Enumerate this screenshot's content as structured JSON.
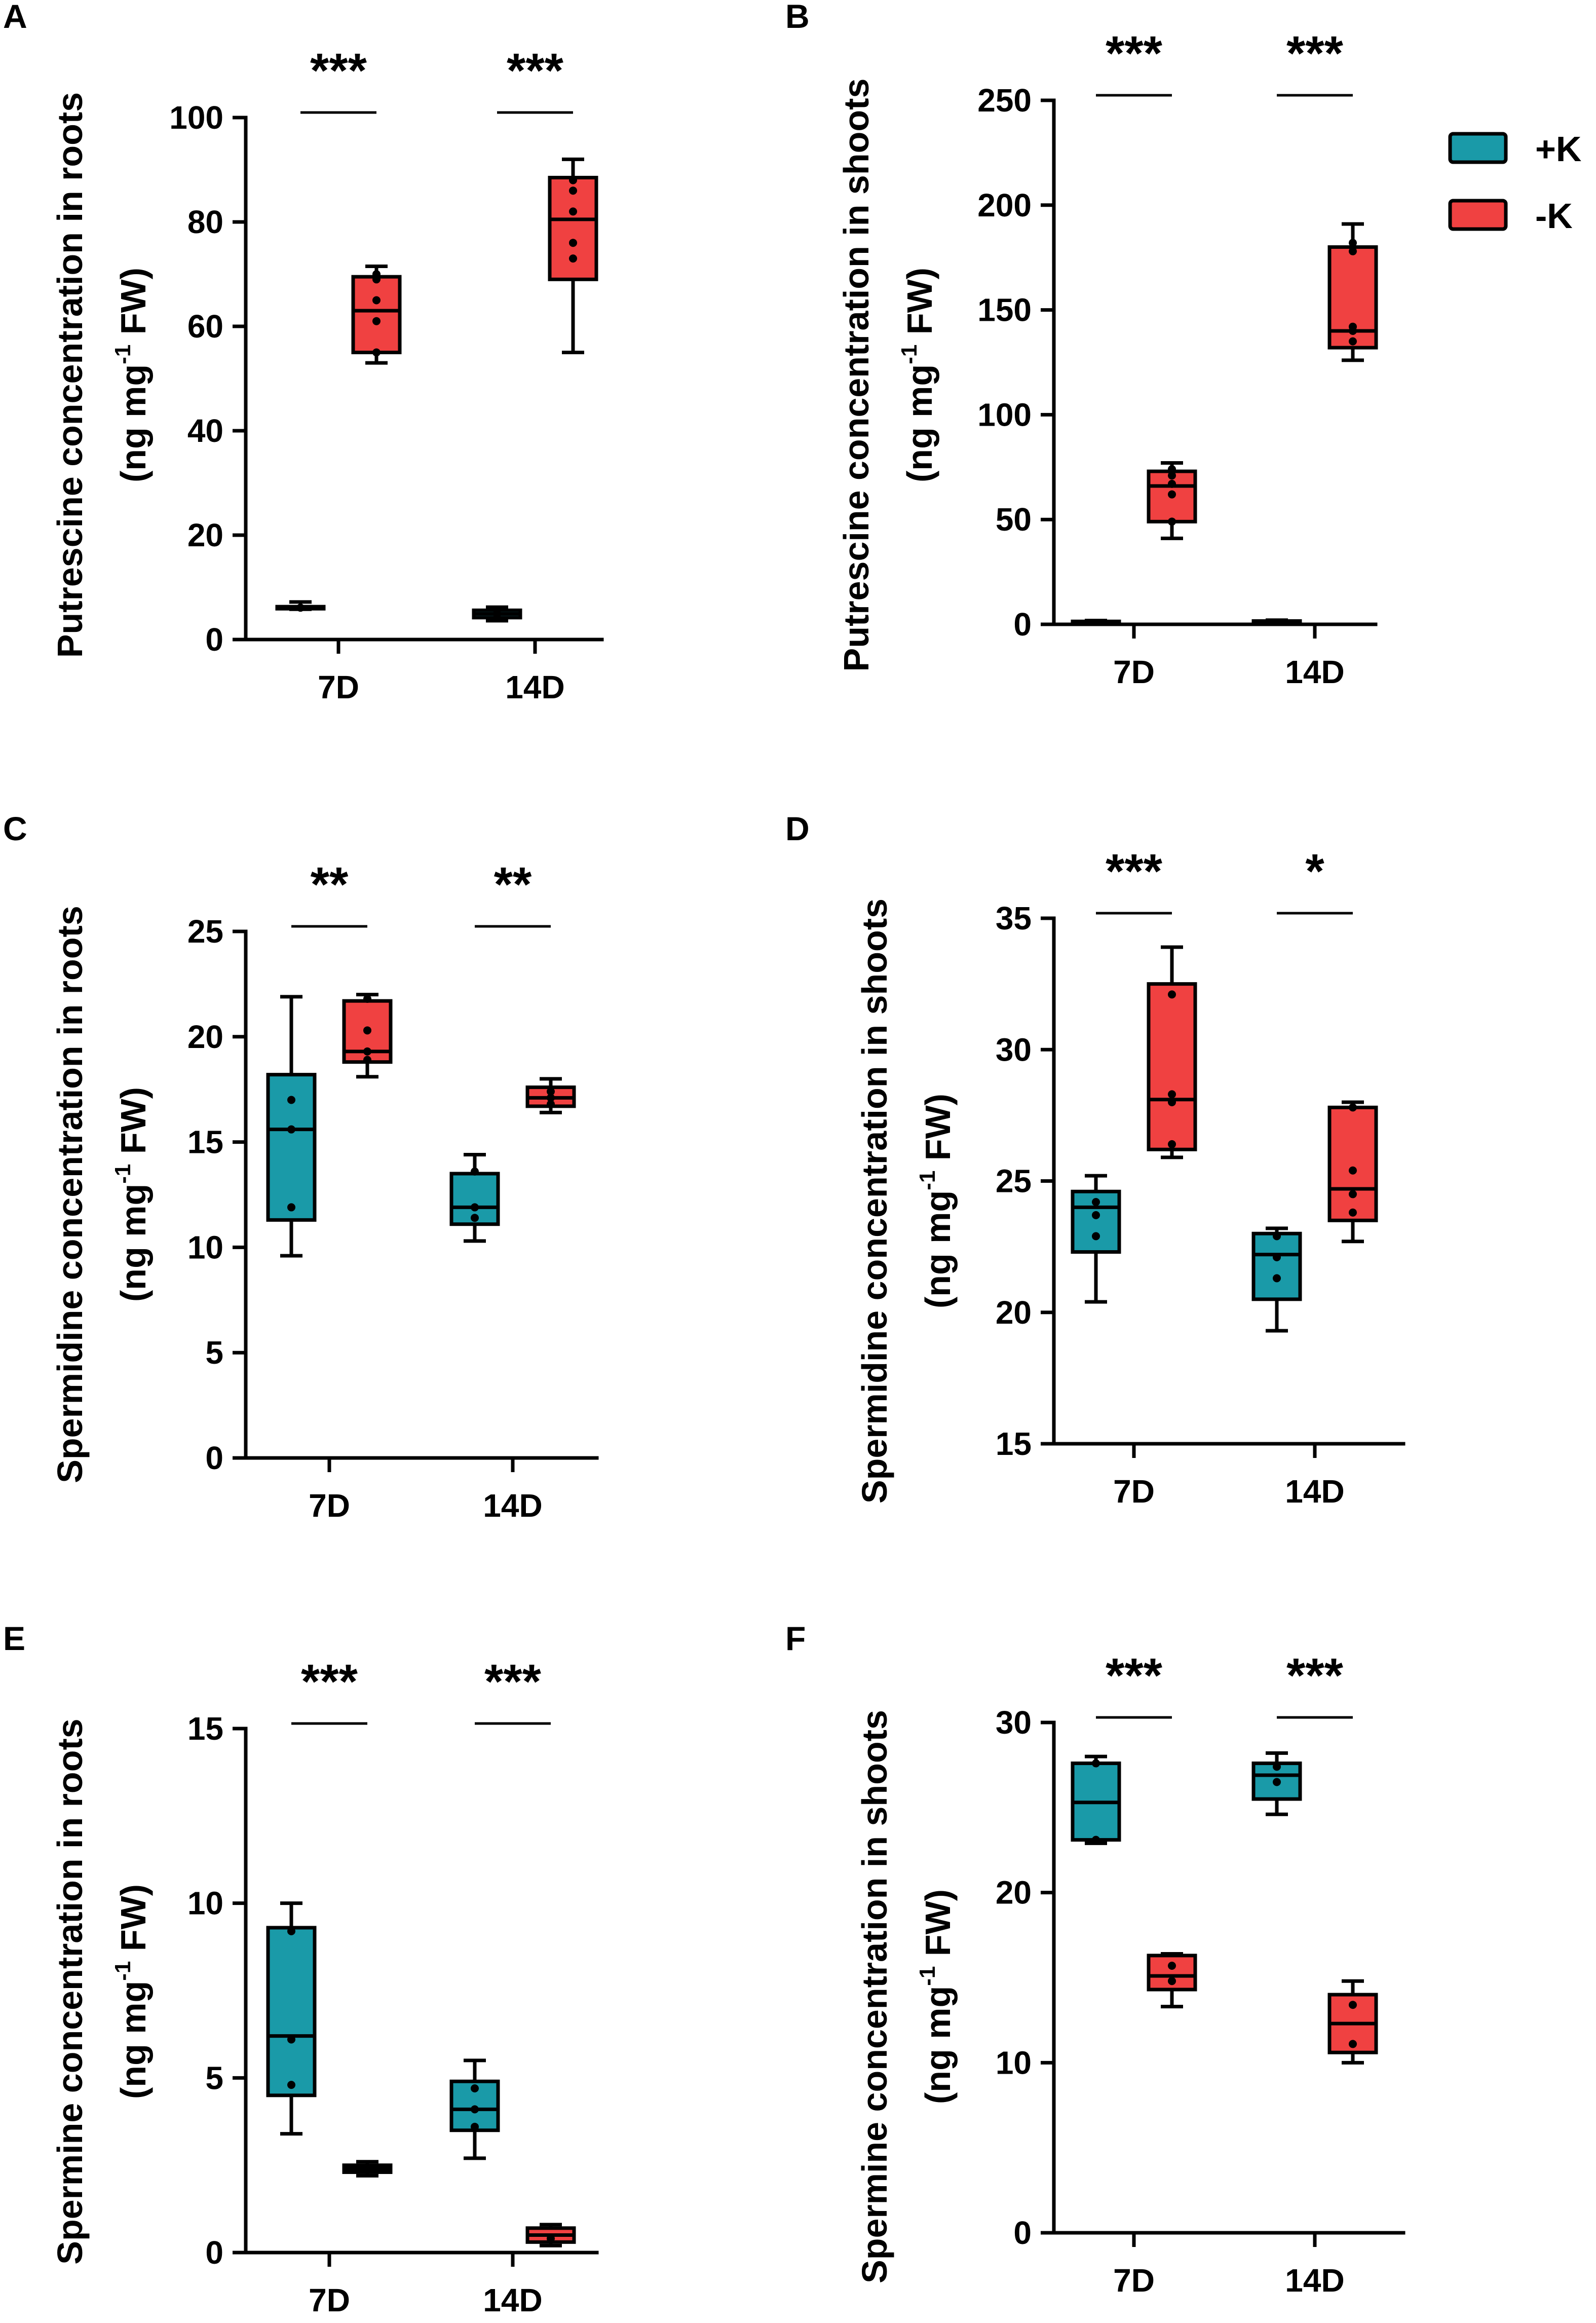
{
  "legend": [
    {
      "label": "+K",
      "color": "#1a9aa8"
    },
    {
      "label": "-K",
      "color": "#f04141"
    }
  ],
  "colors": {
    "plusK": "#1a9aa8",
    "minusK": "#f04141",
    "axis": "#000000"
  },
  "chart_data": [
    {
      "panel": "A",
      "type": "box",
      "ylabel_line1": "Putrescine concentration in roots",
      "ylabel_pre": "(ng mg",
      "ylabel_sup": "-1",
      "ylabel_post": " FW)",
      "categories": [
        "7D",
        "14D"
      ],
      "yticks": [
        0,
        20,
        40,
        60,
        80,
        100
      ],
      "ylim": [
        0,
        100
      ],
      "significance": [
        "***",
        "***"
      ],
      "series": [
        {
          "name": "+K",
          "boxes": [
            {
              "min": 5.8,
              "q1": 5.9,
              "median": 6.1,
              "q3": 6.3,
              "max": 7.2,
              "points": [
                6.1
              ]
            },
            {
              "min": 3.6,
              "q1": 4.2,
              "median": 4.9,
              "q3": 5.6,
              "max": 6.2,
              "points": [
                4.9
              ]
            }
          ]
        },
        {
          "name": "-K",
          "boxes": [
            {
              "min": 53,
              "q1": 55,
              "median": 63,
              "q3": 69.5,
              "max": 71.5,
              "points": [
                55,
                61,
                65,
                69,
                70
              ]
            },
            {
              "min": 55,
              "q1": 69,
              "median": 80.5,
              "q3": 88.5,
              "max": 92,
              "points": [
                73,
                76,
                82,
                86,
                88
              ]
            }
          ]
        }
      ]
    },
    {
      "panel": "B",
      "type": "box",
      "ylabel_line1": "Putrescine concentration in shoots",
      "ylabel_pre": "(ng mg",
      "ylabel_sup": "-1",
      "ylabel_post": " FW)",
      "categories": [
        "7D",
        "14D"
      ],
      "yticks": [
        0,
        50,
        100,
        150,
        200,
        250
      ],
      "ylim": [
        0,
        250
      ],
      "significance": [
        "***",
        "***"
      ],
      "series": [
        {
          "name": "+K",
          "boxes": [
            {
              "min": 0.5,
              "q1": 0.8,
              "median": 1.1,
              "q3": 1.4,
              "max": 1.8,
              "points": []
            },
            {
              "min": 0.5,
              "q1": 0.8,
              "median": 1.2,
              "q3": 1.6,
              "max": 2.0,
              "points": []
            }
          ]
        },
        {
          "name": "-K",
          "boxes": [
            {
              "min": 41,
              "q1": 49,
              "median": 66,
              "q3": 73,
              "max": 77,
              "points": [
                49,
                62,
                67,
                71,
                74
              ]
            },
            {
              "min": 126,
              "q1": 132,
              "median": 140,
              "q3": 180,
              "max": 191,
              "points": [
                135,
                140,
                142,
                178,
                182
              ]
            }
          ]
        }
      ]
    },
    {
      "panel": "C",
      "type": "box",
      "ylabel_line1": "Spermidine concentration in roots",
      "ylabel_pre": "(ng mg",
      "ylabel_sup": "-1",
      "ylabel_post": " FW)",
      "categories": [
        "7D",
        "14D"
      ],
      "yticks": [
        0,
        5,
        10,
        15,
        20,
        25
      ],
      "ylim": [
        0,
        25
      ],
      "significance": [
        "**",
        "**"
      ],
      "series": [
        {
          "name": "+K",
          "boxes": [
            {
              "min": 9.6,
              "q1": 11.3,
              "median": 15.6,
              "q3": 18.2,
              "max": 21.9,
              "points": [
                11.9,
                15.6,
                17.0
              ]
            },
            {
              "min": 10.3,
              "q1": 11.1,
              "median": 11.9,
              "q3": 13.5,
              "max": 14.4,
              "points": [
                11.4,
                11.9,
                13.6
              ]
            }
          ]
        },
        {
          "name": "-K",
          "boxes": [
            {
              "min": 18.1,
              "q1": 18.8,
              "median": 19.3,
              "q3": 21.7,
              "max": 22.0,
              "points": [
                18.9,
                19.3,
                20.3,
                21.8
              ]
            },
            {
              "min": 16.4,
              "q1": 16.7,
              "median": 17.1,
              "q3": 17.6,
              "max": 18.0,
              "points": [
                16.8,
                17.1,
                17.4
              ]
            }
          ]
        }
      ]
    },
    {
      "panel": "D",
      "type": "box",
      "ylabel_line1": "Spermidine concentration in shoots",
      "ylabel_pre": "(ng mg",
      "ylabel_sup": "-1",
      "ylabel_post": " FW)",
      "categories": [
        "7D",
        "14D"
      ],
      "yticks": [
        15,
        20,
        25,
        30,
        35
      ],
      "ylim": [
        15,
        35
      ],
      "significance": [
        "***",
        "*"
      ],
      "series": [
        {
          "name": "+K",
          "boxes": [
            {
              "min": 20.4,
              "q1": 22.3,
              "median": 24.0,
              "q3": 24.6,
              "max": 25.2,
              "points": [
                22.9,
                23.7,
                24.2
              ]
            },
            {
              "min": 19.3,
              "q1": 20.5,
              "median": 22.2,
              "q3": 23.0,
              "max": 23.2,
              "points": [
                21.3,
                22.1,
                22.9
              ]
            }
          ]
        },
        {
          "name": "-K",
          "boxes": [
            {
              "min": 25.9,
              "q1": 26.2,
              "median": 28.1,
              "q3": 32.5,
              "max": 33.9,
              "points": [
                26.4,
                28.0,
                28.3,
                32.1
              ]
            },
            {
              "min": 22.7,
              "q1": 23.5,
              "median": 24.7,
              "q3": 27.8,
              "max": 28.0,
              "points": [
                23.8,
                24.5,
                25.4,
                27.8
              ]
            }
          ]
        }
      ]
    },
    {
      "panel": "E",
      "type": "box",
      "ylabel_line1": "Spermine concentration in roots",
      "ylabel_pre": "(ng mg",
      "ylabel_sup": "-1",
      "ylabel_post": " FW)",
      "categories": [
        "7D",
        "14D"
      ],
      "yticks": [
        0,
        5,
        10,
        15
      ],
      "ylim": [
        0,
        15
      ],
      "significance": [
        "***",
        "***"
      ],
      "series": [
        {
          "name": "+K",
          "boxes": [
            {
              "min": 3.4,
              "q1": 4.5,
              "median": 6.2,
              "q3": 9.3,
              "max": 10.0,
              "points": [
                4.8,
                6.1,
                9.2
              ]
            },
            {
              "min": 2.7,
              "q1": 3.5,
              "median": 4.1,
              "q3": 4.9,
              "max": 5.5,
              "points": [
                3.6,
                4.1,
                4.7
              ]
            }
          ]
        },
        {
          "name": "-K",
          "boxes": [
            {
              "min": 2.2,
              "q1": 2.3,
              "median": 2.4,
              "q3": 2.5,
              "max": 2.6,
              "points": [
                2.4
              ]
            },
            {
              "min": 0.2,
              "q1": 0.3,
              "median": 0.5,
              "q3": 0.7,
              "max": 0.8,
              "points": [
                0.4
              ]
            }
          ]
        }
      ]
    },
    {
      "panel": "F",
      "type": "box",
      "ylabel_line1": "Spermine concentration in shoots",
      "ylabel_pre": "(ng mg",
      "ylabel_sup": "-1",
      "ylabel_post": " FW)",
      "categories": [
        "7D",
        "14D"
      ],
      "yticks": [
        0,
        10,
        20,
        30
      ],
      "ylim": [
        0,
        30
      ],
      "significance": [
        "***",
        "***"
      ],
      "series": [
        {
          "name": "+K",
          "boxes": [
            {
              "min": 22.9,
              "q1": 23.1,
              "median": 25.3,
              "q3": 27.6,
              "max": 28.0,
              "points": [
                23.1,
                27.6
              ]
            },
            {
              "min": 24.6,
              "q1": 25.5,
              "median": 26.9,
              "q3": 27.6,
              "max": 28.2,
              "points": [
                26.5,
                27.4
              ]
            }
          ]
        },
        {
          "name": "-K",
          "boxes": [
            {
              "min": 13.3,
              "q1": 14.3,
              "median": 15.1,
              "q3": 16.3,
              "max": 16.4,
              "points": [
                14.8,
                15.7
              ]
            },
            {
              "min": 10.0,
              "q1": 10.6,
              "median": 12.3,
              "q3": 14.0,
              "max": 14.8,
              "points": [
                11.1,
                13.4
              ]
            }
          ]
        }
      ]
    }
  ]
}
